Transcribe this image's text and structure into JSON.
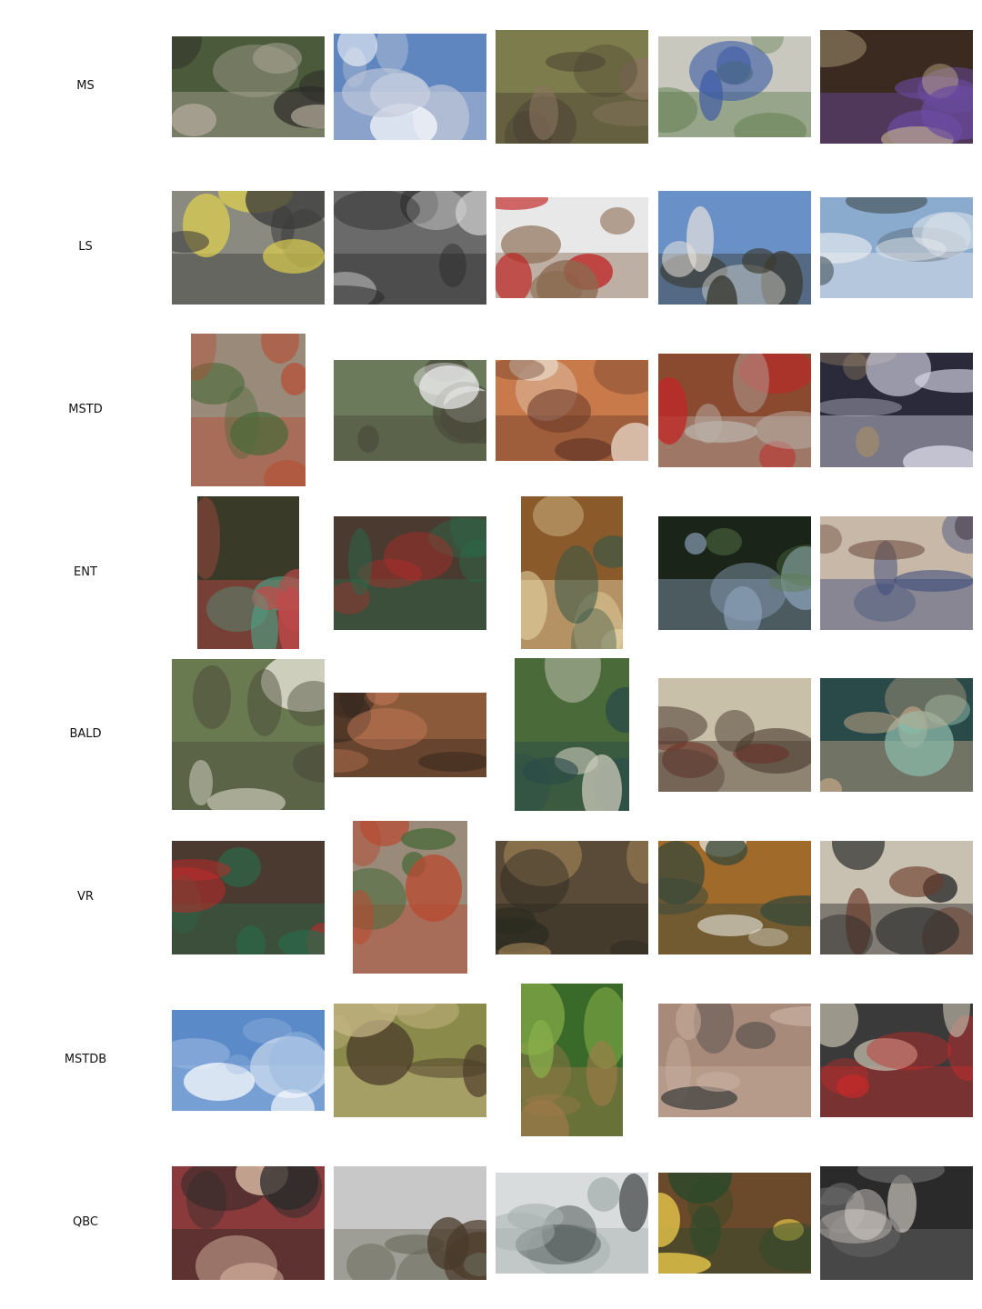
{
  "rows": [
    {
      "label": "MS",
      "images": [
        {
          "name": "bird-on-branch-photo",
          "palette": [
            "#4a5a3a",
            "#2c2a28",
            "#b0a89a"
          ]
        },
        {
          "name": "airplane-sky-photo",
          "palette": [
            "#5f86bf",
            "#ffffff",
            "#c0c8d8"
          ]
        },
        {
          "name": "kitten-portrait-photo",
          "palette": [
            "#7c7c4c",
            "#8a7560",
            "#4a3f33"
          ]
        },
        {
          "name": "hummingbird-photo",
          "palette": [
            "#c9c8bf",
            "#3b5aa6",
            "#5a7a4a"
          ]
        },
        {
          "name": "fluffy-cat-photo",
          "palette": [
            "#3a2a20",
            "#c8b48c",
            "#6a4aa0"
          ]
        }
      ]
    },
    {
      "label": "LS",
      "images": [
        {
          "name": "yellow-car-photo",
          "palette": [
            "#8a8a80",
            "#e8d84a",
            "#3a3a3a"
          ]
        },
        {
          "name": "cat-with-laptop-photo",
          "palette": [
            "#6a6a6a",
            "#d8d8d8",
            "#2a2a2a"
          ]
        },
        {
          "name": "holiday-group-photo",
          "palette": [
            "#e8e8e8",
            "#c02020",
            "#8a6a50"
          ]
        },
        {
          "name": "yard-sale-photo",
          "palette": [
            "#6a90c8",
            "#e8e4dc",
            "#3a3a30"
          ]
        },
        {
          "name": "snowy-mountain-photo",
          "palette": [
            "#8aaace",
            "#4a5a60",
            "#e8ecf0"
          ]
        }
      ]
    },
    {
      "label": "MSTD",
      "images": [
        {
          "name": "bottles-on-ground-photo",
          "palette": [
            "#9a8a7a",
            "#4a6a3a",
            "#b84a30"
          ]
        },
        {
          "name": "outdoor-dinner-photo",
          "palette": [
            "#6a7a5a",
            "#e8e8e8",
            "#4a4a3a"
          ]
        },
        {
          "name": "restaurant-table-photo",
          "palette": [
            "#c87a4a",
            "#e8d8c8",
            "#6a3a2a"
          ]
        },
        {
          "name": "family-on-couch-photo",
          "palette": [
            "#8a4a30",
            "#c02828",
            "#b8b0a8"
          ]
        },
        {
          "name": "concert-stage-photo",
          "palette": [
            "#2a2a3a",
            "#a08a6a",
            "#d8d8e8"
          ]
        }
      ]
    },
    {
      "label": "ENT",
      "images": [
        {
          "name": "holiday-table-photo",
          "palette": [
            "#3a3a28",
            "#4aa88a",
            "#c04a4a"
          ]
        },
        {
          "name": "checkered-table-photo",
          "palette": [
            "#4a3a30",
            "#c02a2a",
            "#2a6a4a"
          ]
        },
        {
          "name": "dining-room-photo",
          "palette": [
            "#8a5a2a",
            "#3a5a48",
            "#e8d8a8"
          ]
        },
        {
          "name": "porch-view-photo",
          "palette": [
            "#1a2418",
            "#5a7a4a",
            "#8aa0b8"
          ]
        },
        {
          "name": "group-dinner-photo",
          "palette": [
            "#c8b8a8",
            "#6a4a3a",
            "#3a4a7a"
          ]
        }
      ]
    },
    {
      "label": "BALD",
      "images": [
        {
          "name": "sheep-flock-photo",
          "palette": [
            "#6a7a50",
            "#e8e4d8",
            "#4a4a3a"
          ]
        },
        {
          "name": "pony-cart-photo",
          "palette": [
            "#8a5a3a",
            "#c87a5a",
            "#3a2a20"
          ]
        },
        {
          "name": "tree-lined-path-photo",
          "palette": [
            "#4a6a3a",
            "#c8c8b8",
            "#2a4a4a"
          ]
        },
        {
          "name": "living-room-photo",
          "palette": [
            "#c8c0a8",
            "#6a2a20",
            "#4a3a30"
          ]
        },
        {
          "name": "boat-party-photo",
          "palette": [
            "#2a4a4a",
            "#8ab8a8",
            "#c8a888"
          ]
        }
      ]
    },
    {
      "label": "VR",
      "images": [
        {
          "name": "checkered-table-photo-2",
          "palette": [
            "#4a3a30",
            "#c02a2a",
            "#2a6a4a"
          ]
        },
        {
          "name": "bottles-on-ground-photo-2",
          "palette": [
            "#9a8a7a",
            "#4a6a3a",
            "#b84a30"
          ]
        },
        {
          "name": "hawk-in-forest-photo",
          "palette": [
            "#5a4a38",
            "#a88a5a",
            "#2a2a20"
          ]
        },
        {
          "name": "kitchen-photo",
          "palette": [
            "#a06a2a",
            "#e8e8e0",
            "#3a4a3a"
          ]
        },
        {
          "name": "dining-area-photo",
          "palette": [
            "#c8c0b0",
            "#6a3a2a",
            "#2a2a2a"
          ]
        }
      ]
    },
    {
      "label": "MSTDB",
      "images": [
        {
          "name": "jet-contrails-photo",
          "palette": [
            "#5a8ac8",
            "#ffffff",
            "#9ab8e0"
          ]
        },
        {
          "name": "horse-grazing-photo",
          "palette": [
            "#8a8a4a",
            "#4a3a28",
            "#c8b888"
          ]
        },
        {
          "name": "forest-boardwalk-photo",
          "palette": [
            "#3a6a2a",
            "#8ab04a",
            "#a07a4a"
          ]
        },
        {
          "name": "jeep-canyon-photo",
          "palette": [
            "#a88a7a",
            "#3a3a3a",
            "#c8b0a0"
          ]
        },
        {
          "name": "cat-behind-net-photo",
          "palette": [
            "#3a3a3a",
            "#c8c0b0",
            "#c82a2a"
          ]
        }
      ]
    },
    {
      "label": "QBC",
      "images": [
        {
          "name": "girls-street-photo",
          "palette": [
            "#8a3a3a",
            "#e8c8b0",
            "#2a2a2a"
          ]
        },
        {
          "name": "horse-riders-photo",
          "palette": [
            "#c8c8c8",
            "#4a3a2a",
            "#6a6a5a"
          ]
        },
        {
          "name": "bridge-water-photo",
          "palette": [
            "#d8dcdc",
            "#4a5050",
            "#a8b0b0"
          ]
        },
        {
          "name": "christmas-room-photo",
          "palette": [
            "#6a4a2a",
            "#e8c84a",
            "#2a4a2a"
          ]
        },
        {
          "name": "photo-cutout-collage",
          "palette": [
            "#2a2a2a",
            "#e8e0d8",
            "#6a6a6a"
          ]
        }
      ]
    }
  ]
}
